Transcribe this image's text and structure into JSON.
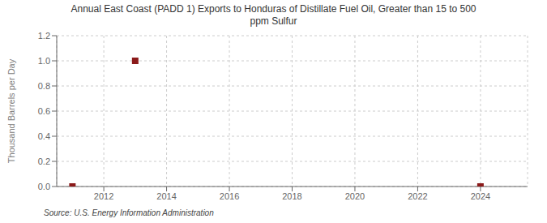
{
  "chart_data": {
    "type": "scatter",
    "title": "Annual East Coast (PADD 1) Exports to Honduras of Distillate Fuel Oil, Greater than 15 to 500\nppm Sulfur",
    "ylabel": "Thousand Barrels per Day",
    "annotation": "Source: U.S. Energy Information Administration",
    "x": [
      2011,
      2013,
      2024
    ],
    "values": [
      0.0,
      1.0,
      0.0
    ],
    "color": "#8b1a1a",
    "marker": "square",
    "xlim": [
      2010.5,
      2025.5
    ],
    "xticks": [
      2012,
      2014,
      2016,
      2018,
      2020,
      2022,
      2024
    ],
    "ylim": [
      0.0,
      1.2
    ],
    "yticks": [
      {
        "value": 0.0,
        "label": "0.0"
      },
      {
        "value": 0.2,
        "label": "0.2"
      },
      {
        "value": 0.4,
        "label": "0.4"
      },
      {
        "value": 0.6,
        "label": "0.6"
      },
      {
        "value": 0.8,
        "label": "0.8"
      },
      {
        "value": 1.0,
        "label": "1.0"
      },
      {
        "value": 1.2,
        "label": "1.2"
      }
    ],
    "grid": true
  }
}
